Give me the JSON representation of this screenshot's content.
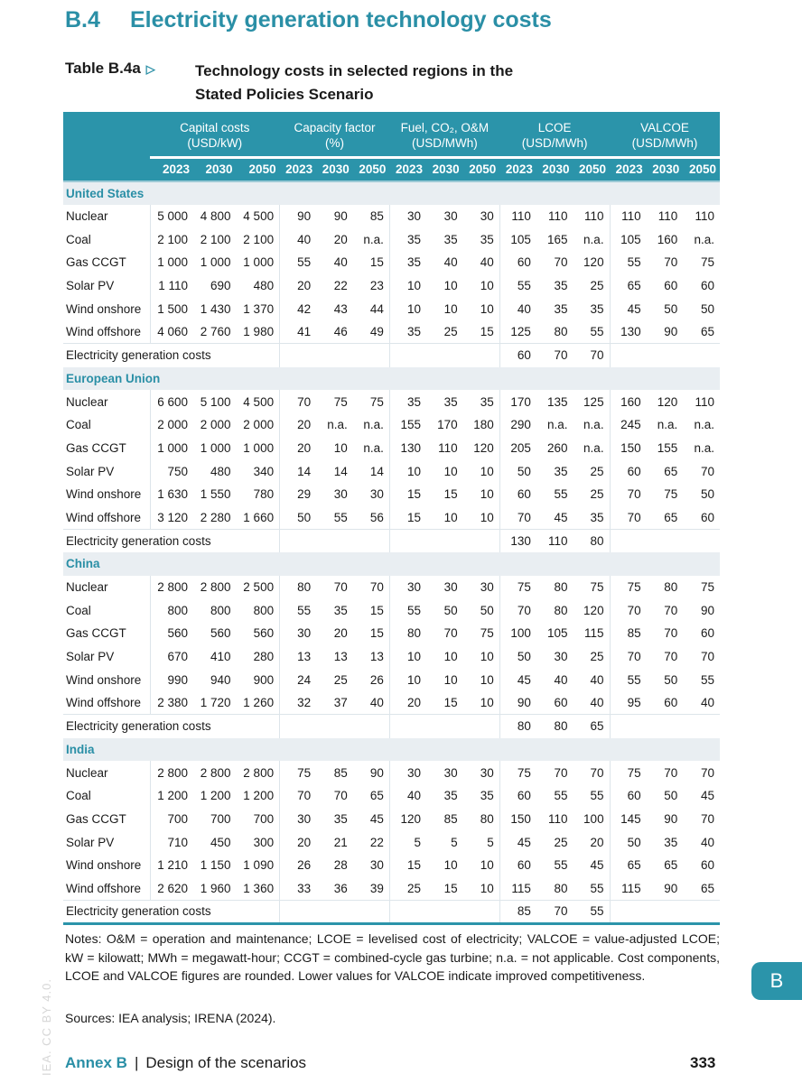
{
  "heading": {
    "number": "B.4",
    "title": "Electricity generation technology costs"
  },
  "table_label": "Table B.4a",
  "table_label_icon": "triangle-right-icon",
  "table_title_line1": "Technology costs in selected regions in the",
  "table_title_line2": "Stated Policies Scenario",
  "groups": [
    {
      "name": "Capital costs",
      "unit": "(USD/kW)"
    },
    {
      "name": "Capacity factor",
      "unit": "(%)"
    },
    {
      "name": "Fuel, CO₂, O&M",
      "unit": "(USD/MWh)"
    },
    {
      "name": "LCOE",
      "unit": "(USD/MWh)"
    },
    {
      "name": "VALCOE",
      "unit": "(USD/MWh)"
    }
  ],
  "years": [
    "2023",
    "2030",
    "2050"
  ],
  "sections": [
    {
      "name": "United States",
      "rows": [
        {
          "label": "Nuclear",
          "values": [
            "5 000",
            "4 800",
            "4 500",
            "90",
            "90",
            "85",
            "30",
            "30",
            "30",
            "110",
            "110",
            "110",
            "110",
            "110",
            "110"
          ]
        },
        {
          "label": "Coal",
          "values": [
            "2 100",
            "2 100",
            "2 100",
            "40",
            "20",
            "n.a.",
            "35",
            "35",
            "35",
            "105",
            "165",
            "n.a.",
            "105",
            "160",
            "n.a."
          ]
        },
        {
          "label": "Gas CCGT",
          "values": [
            "1 000",
            "1 000",
            "1 000",
            "55",
            "40",
            "15",
            "35",
            "40",
            "40",
            "60",
            "70",
            "120",
            "55",
            "70",
            "75"
          ]
        },
        {
          "label": "Solar PV",
          "values": [
            "1 110",
            "690",
            "480",
            "20",
            "22",
            "23",
            "10",
            "10",
            "10",
            "55",
            "35",
            "25",
            "65",
            "60",
            "60"
          ]
        },
        {
          "label": "Wind onshore",
          "values": [
            "1 500",
            "1 430",
            "1 370",
            "42",
            "43",
            "44",
            "10",
            "10",
            "10",
            "40",
            "35",
            "35",
            "45",
            "50",
            "50"
          ]
        },
        {
          "label": "Wind offshore",
          "values": [
            "4 060",
            "2 760",
            "1 980",
            "41",
            "46",
            "49",
            "35",
            "25",
            "15",
            "125",
            "80",
            "55",
            "130",
            "90",
            "65"
          ]
        }
      ],
      "total_label": "Electricity generation costs",
      "total": [
        "60",
        "70",
        "70"
      ]
    },
    {
      "name": "European Union",
      "rows": [
        {
          "label": "Nuclear",
          "values": [
            "6 600",
            "5 100",
            "4 500",
            "70",
            "75",
            "75",
            "35",
            "35",
            "35",
            "170",
            "135",
            "125",
            "160",
            "120",
            "110"
          ]
        },
        {
          "label": "Coal",
          "values": [
            "2 000",
            "2 000",
            "2 000",
            "20",
            "n.a.",
            "n.a.",
            "155",
            "170",
            "180",
            "290",
            "n.a.",
            "n.a.",
            "245",
            "n.a.",
            "n.a."
          ]
        },
        {
          "label": "Gas CCGT",
          "values": [
            "1 000",
            "1 000",
            "1 000",
            "20",
            "10",
            "n.a.",
            "130",
            "110",
            "120",
            "205",
            "260",
            "n.a.",
            "150",
            "155",
            "n.a."
          ]
        },
        {
          "label": "Solar PV",
          "values": [
            "750",
            "480",
            "340",
            "14",
            "14",
            "14",
            "10",
            "10",
            "10",
            "50",
            "35",
            "25",
            "60",
            "65",
            "70"
          ]
        },
        {
          "label": "Wind onshore",
          "values": [
            "1 630",
            "1 550",
            "780",
            "29",
            "30",
            "30",
            "15",
            "15",
            "10",
            "60",
            "55",
            "25",
            "70",
            "75",
            "50"
          ]
        },
        {
          "label": "Wind offshore",
          "values": [
            "3 120",
            "2 280",
            "1 660",
            "50",
            "55",
            "56",
            "15",
            "10",
            "10",
            "70",
            "45",
            "35",
            "70",
            "65",
            "60"
          ]
        }
      ],
      "total_label": "Electricity generation costs",
      "total": [
        "130",
        "110",
        "80"
      ]
    },
    {
      "name": "China",
      "rows": [
        {
          "label": "Nuclear",
          "values": [
            "2 800",
            "2 800",
            "2 500",
            "80",
            "70",
            "70",
            "30",
            "30",
            "30",
            "75",
            "80",
            "75",
            "75",
            "80",
            "75"
          ]
        },
        {
          "label": "Coal",
          "values": [
            "800",
            "800",
            "800",
            "55",
            "35",
            "15",
            "55",
            "50",
            "50",
            "70",
            "80",
            "120",
            "70",
            "70",
            "90"
          ]
        },
        {
          "label": "Gas CCGT",
          "values": [
            "560",
            "560",
            "560",
            "30",
            "20",
            "15",
            "80",
            "70",
            "75",
            "100",
            "105",
            "115",
            "85",
            "70",
            "60"
          ]
        },
        {
          "label": "Solar PV",
          "values": [
            "670",
            "410",
            "280",
            "13",
            "13",
            "13",
            "10",
            "10",
            "10",
            "50",
            "30",
            "25",
            "70",
            "70",
            "70"
          ]
        },
        {
          "label": "Wind onshore",
          "values": [
            "990",
            "940",
            "900",
            "24",
            "25",
            "26",
            "10",
            "10",
            "10",
            "45",
            "40",
            "40",
            "55",
            "50",
            "55"
          ]
        },
        {
          "label": "Wind offshore",
          "values": [
            "2 380",
            "1 720",
            "1 260",
            "32",
            "37",
            "40",
            "20",
            "15",
            "10",
            "90",
            "60",
            "40",
            "95",
            "60",
            "40"
          ]
        }
      ],
      "total_label": "Electricity generation costs",
      "total": [
        "80",
        "80",
        "65"
      ]
    },
    {
      "name": "India",
      "rows": [
        {
          "label": "Nuclear",
          "values": [
            "2 800",
            "2 800",
            "2 800",
            "75",
            "85",
            "90",
            "30",
            "30",
            "30",
            "75",
            "70",
            "70",
            "75",
            "70",
            "70"
          ]
        },
        {
          "label": "Coal",
          "values": [
            "1 200",
            "1 200",
            "1 200",
            "70",
            "70",
            "65",
            "40",
            "35",
            "35",
            "60",
            "55",
            "55",
            "60",
            "50",
            "45"
          ]
        },
        {
          "label": "Gas CCGT",
          "values": [
            "700",
            "700",
            "700",
            "30",
            "35",
            "45",
            "120",
            "85",
            "80",
            "150",
            "110",
            "100",
            "145",
            "90",
            "70"
          ]
        },
        {
          "label": "Solar PV",
          "values": [
            "710",
            "450",
            "300",
            "20",
            "21",
            "22",
            "5",
            "5",
            "5",
            "45",
            "25",
            "20",
            "50",
            "35",
            "40"
          ]
        },
        {
          "label": "Wind onshore",
          "values": [
            "1 210",
            "1 150",
            "1 090",
            "26",
            "28",
            "30",
            "15",
            "10",
            "10",
            "60",
            "55",
            "45",
            "65",
            "65",
            "60"
          ]
        },
        {
          "label": "Wind offshore",
          "values": [
            "2 620",
            "1 960",
            "1 360",
            "33",
            "36",
            "39",
            "25",
            "15",
            "10",
            "115",
            "80",
            "55",
            "115",
            "90",
            "65"
          ]
        }
      ],
      "total_label": "Electricity generation costs",
      "total": [
        "85",
        "70",
        "55"
      ]
    }
  ],
  "notes": "Notes: O&M = operation and maintenance; LCOE = levelised cost of electricity; VALCOE = value-adjusted LCOE; kW = kilowatt; MWh = megawatt-hour; CCGT = combined-cycle gas turbine; n.a. = not applicable. Cost components, LCOE and VALCOE figures are rounded. Lower values for VALCOE indicate improved competitiveness.",
  "sources": "Sources: IEA analysis; IRENA (2024).",
  "side_tab": "B",
  "watermark": "IEA. CC BY 4.0.",
  "footer": {
    "annex": "Annex B",
    "separator": "|",
    "title": "Design of the scenarios",
    "page": "333"
  },
  "colors": {
    "accent": "#2b94aa",
    "section_bg": "#e9eef2"
  }
}
